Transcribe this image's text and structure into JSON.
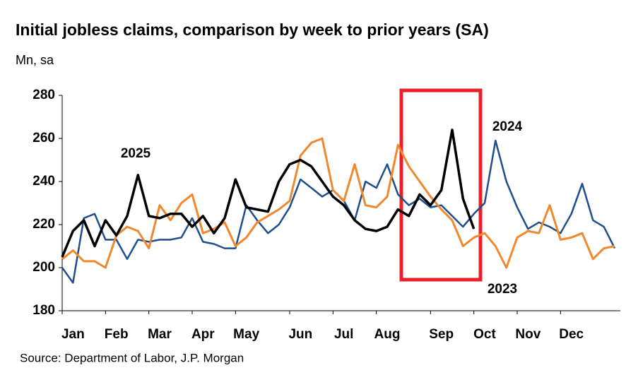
{
  "chart_data": {
    "type": "line",
    "title": "Initial jobless claims, comparison by week to prior years (SA)",
    "subtitle": "Mn, sa",
    "source": "Source: Department of Labor, J.P. Morgan",
    "categories": [
      null,
      "Jan",
      null,
      null,
      null,
      "Feb",
      null,
      null,
      null,
      "Mar",
      null,
      null,
      null,
      "Apr",
      null,
      null,
      null,
      "May",
      null,
      null,
      null,
      null,
      "Jun",
      null,
      null,
      null,
      "Jul",
      null,
      null,
      null,
      "Aug",
      null,
      null,
      null,
      null,
      "Sep",
      null,
      null,
      null,
      "Oct",
      null,
      null,
      null,
      "Nov",
      null,
      null,
      null,
      "Dec",
      null,
      null,
      null,
      null
    ],
    "series": [
      {
        "name": "2024",
        "color": "#1f4e8c",
        "width": 2.5,
        "values": [
          200,
          193,
          223,
          225,
          213,
          213,
          204,
          213,
          212,
          213,
          213,
          214,
          223,
          212,
          211,
          209,
          209,
          229,
          222,
          216,
          220,
          228,
          241,
          237,
          233,
          236,
          231,
          222,
          240,
          237,
          248,
          234,
          229,
          232,
          228,
          229,
          224,
          219,
          225,
          230,
          259,
          240,
          228,
          218,
          221,
          219,
          216,
          225,
          239,
          222,
          219,
          209
        ]
      },
      {
        "name": "2023",
        "color": "#f0882e",
        "width": 3,
        "values": [
          204,
          208,
          203,
          203,
          200,
          215,
          219,
          217,
          209,
          229,
          222,
          230,
          234,
          216,
          218,
          221,
          210,
          214,
          221,
          224,
          227,
          231,
          252,
          258,
          260,
          236,
          231,
          248,
          229,
          228,
          233,
          257,
          247,
          240,
          233,
          227,
          222,
          210,
          214,
          216,
          210,
          200,
          214,
          217,
          216,
          229,
          213,
          214,
          216,
          204,
          209,
          210
        ]
      },
      {
        "name": "2025",
        "color": "#000000",
        "width": 3.5,
        "values": [
          205,
          217,
          222,
          210,
          222,
          215,
          224,
          243,
          224,
          223,
          225,
          225,
          219,
          224,
          216,
          223,
          241,
          228,
          227,
          226,
          240,
          248,
          250,
          247,
          240,
          233,
          229,
          222,
          218,
          217,
          219,
          227,
          224,
          234,
          229,
          236,
          264,
          232,
          218,
          null,
          null,
          null,
          null,
          null,
          null,
          null,
          null,
          null,
          null,
          null,
          null,
          null
        ]
      }
    ],
    "ylim": [
      180,
      280
    ],
    "yticks": [
      180,
      200,
      220,
      240,
      260,
      280
    ],
    "grid": false
  }
}
